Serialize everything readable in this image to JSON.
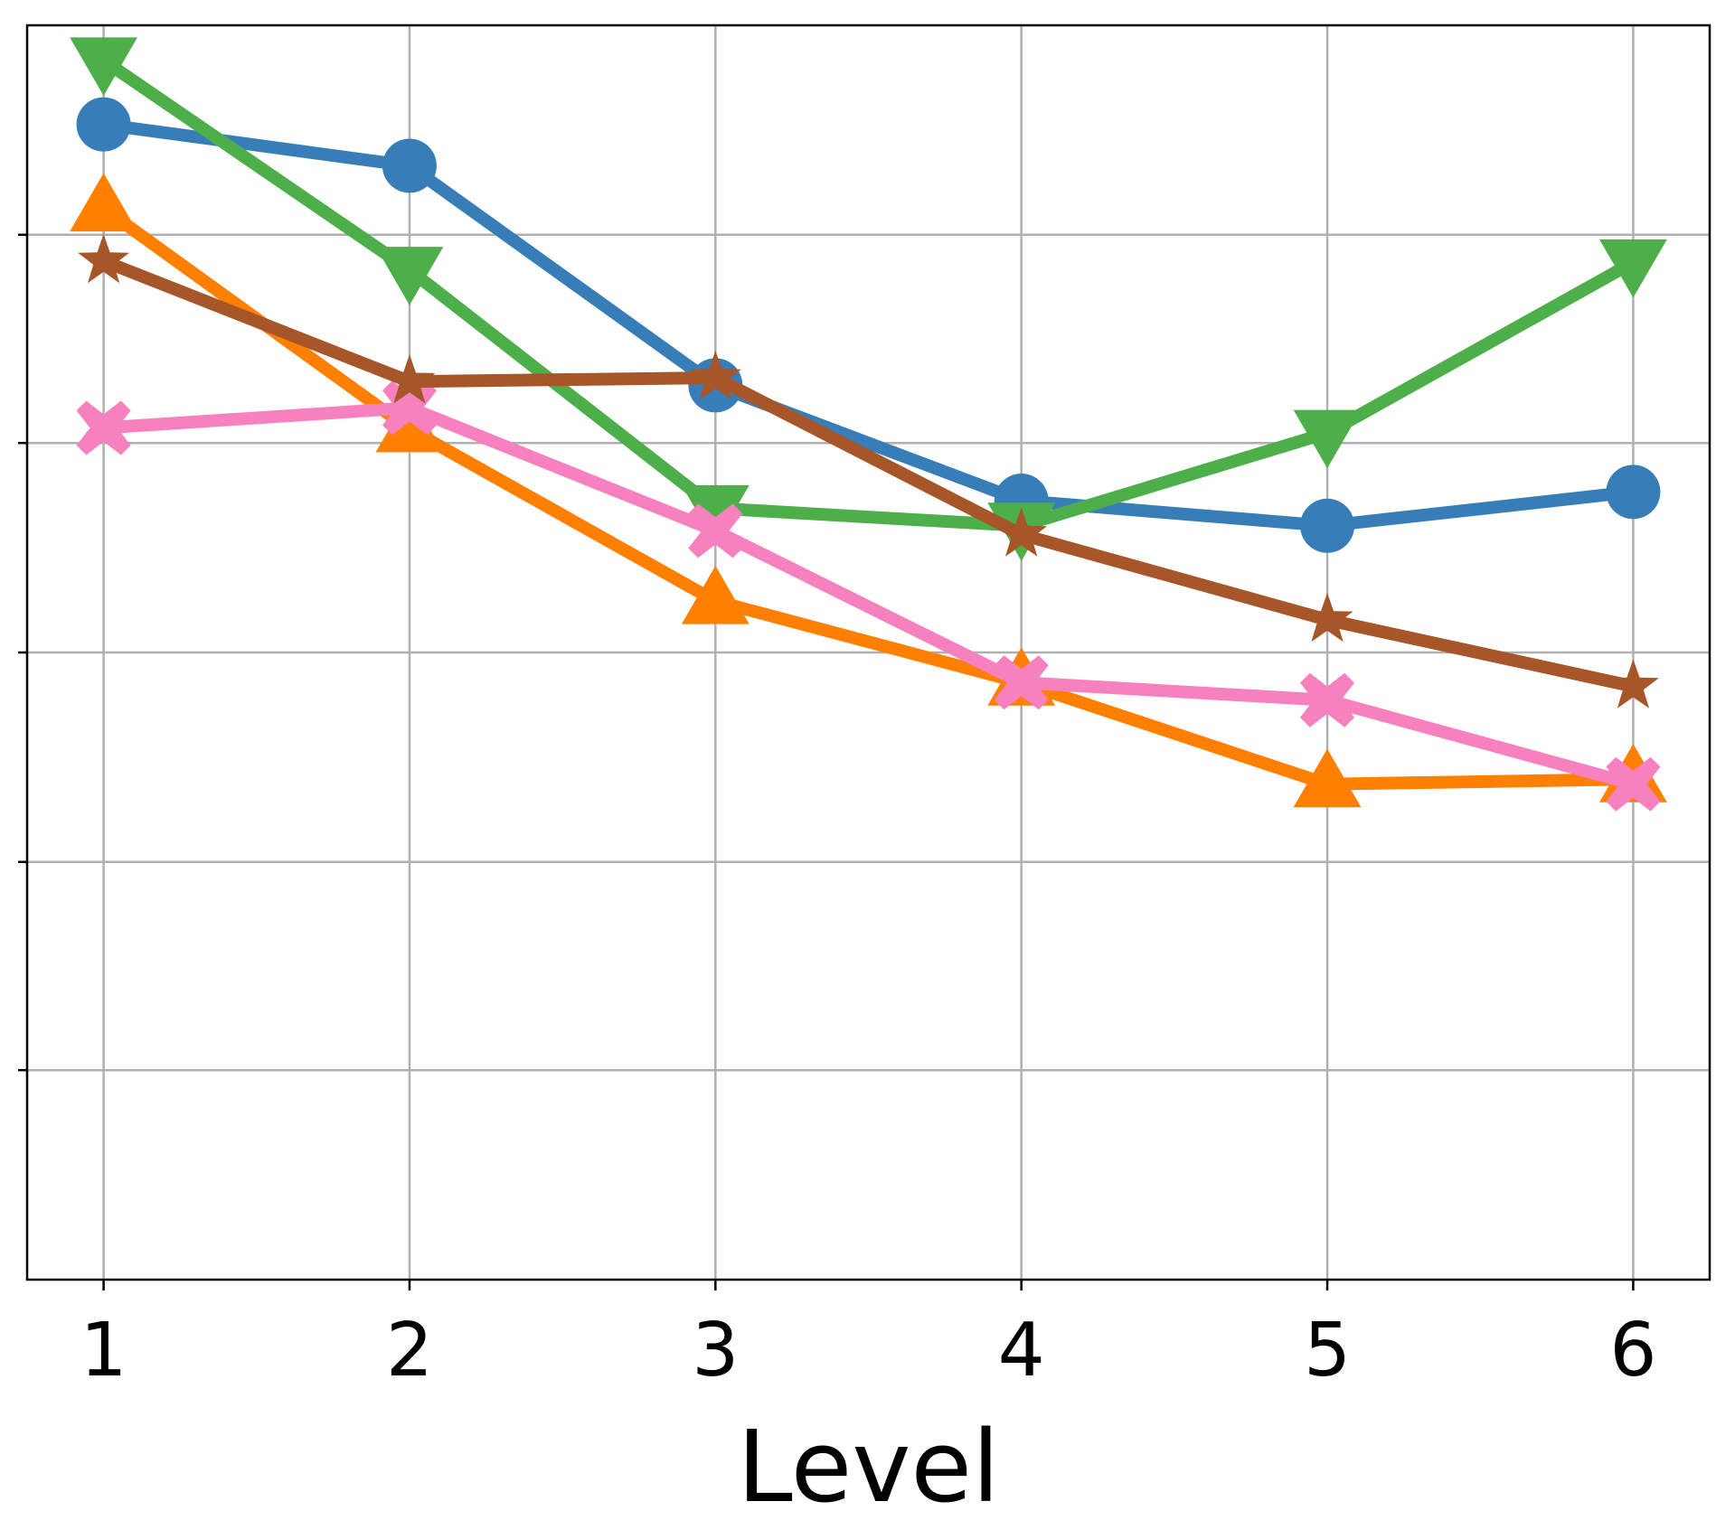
{
  "chart_data": {
    "type": "line",
    "xlabel": "Level",
    "ylabel": "",
    "title": "",
    "x": [
      1,
      2,
      3,
      4,
      5,
      6
    ],
    "x_tick_labels": [
      "1",
      "2",
      "3",
      "4",
      "5",
      "6"
    ],
    "xlim": [
      0.75,
      6.25
    ],
    "ylim": [
      0,
      1.0
    ],
    "y_gridlines": [
      0.167,
      0.333,
      0.5,
      0.667,
      0.833
    ],
    "y_tick_labels_visible": false,
    "grid": true,
    "legend": "none",
    "series": [
      {
        "color": "#377eb8",
        "marker": "circle",
        "values": [
          0.921,
          0.888,
          0.713,
          0.621,
          0.601,
          0.628
        ]
      },
      {
        "color": "#ff7f00",
        "marker": "triangle-up",
        "values": [
          0.854,
          0.678,
          0.541,
          0.476,
          0.395,
          0.399
        ]
      },
      {
        "color": "#4daf4a",
        "marker": "triangle-down",
        "values": [
          0.972,
          0.805,
          0.615,
          0.601,
          0.675,
          0.811
        ]
      },
      {
        "color": "#f781bf",
        "marker": "x-filled",
        "values": [
          0.679,
          0.695,
          0.597,
          0.476,
          0.462,
          0.395
        ]
      },
      {
        "color": "#a65628",
        "marker": "star",
        "values": [
          0.812,
          0.716,
          0.719,
          0.594,
          0.526,
          0.473
        ]
      }
    ]
  }
}
